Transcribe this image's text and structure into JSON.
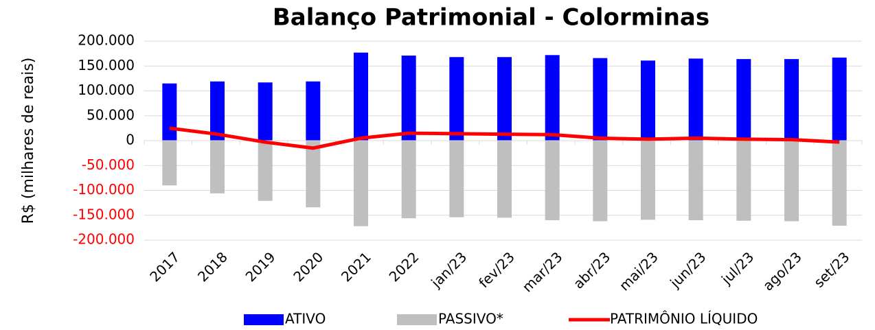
{
  "chart_data": {
    "type": "bar",
    "title": "Balanço Patrimonial - Colorminas",
    "y_label": "R$ (milhares de reais)",
    "categories": [
      "2017",
      "2018",
      "2019",
      "2020",
      "2021",
      "2022",
      "jan/23",
      "fev/23",
      "mar/23",
      "abr/23",
      "mai/23",
      "jun/23",
      "jul/23",
      "ago/23",
      "set/23"
    ],
    "series": [
      {
        "name": "ATIVO",
        "type": "bar",
        "color": "#0000ff",
        "values": [
          115000,
          119000,
          117000,
          119000,
          177000,
          171000,
          168000,
          168000,
          172000,
          166000,
          161000,
          165000,
          164000,
          164000,
          167000
        ]
      },
      {
        "name": "PASSIVO*",
        "type": "bar",
        "color": "#bfbfbf",
        "values": [
          -90000,
          -106000,
          -121000,
          -134000,
          -172000,
          -156000,
          -154000,
          -155000,
          -160000,
          -162000,
          -159000,
          -160000,
          -161000,
          -162000,
          -171000
        ]
      },
      {
        "name": "PATRIMÔNIO LÍQUIDO",
        "type": "line",
        "color": "#ff0000",
        "values": [
          25000,
          13000,
          -3000,
          -15000,
          5000,
          15000,
          14000,
          13000,
          12000,
          5000,
          3000,
          5000,
          3000,
          2000,
          -3000
        ]
      }
    ],
    "ylim": [
      -200000,
      200000
    ],
    "yticks": [
      {
        "value": 200000,
        "label": "200.000"
      },
      {
        "value": 150000,
        "label": "150.000"
      },
      {
        "value": 100000,
        "label": "100.000"
      },
      {
        "value": 50000,
        "label": "50.000"
      },
      0,
      {
        "value": -50000,
        "label": "-50.000"
      },
      {
        "value": -100000,
        "label": "-100.000"
      },
      {
        "value": -150000,
        "label": "-150.000"
      },
      {
        "value": -200000,
        "label": "-200.000"
      }
    ],
    "grid": true,
    "legend": "bottom"
  }
}
